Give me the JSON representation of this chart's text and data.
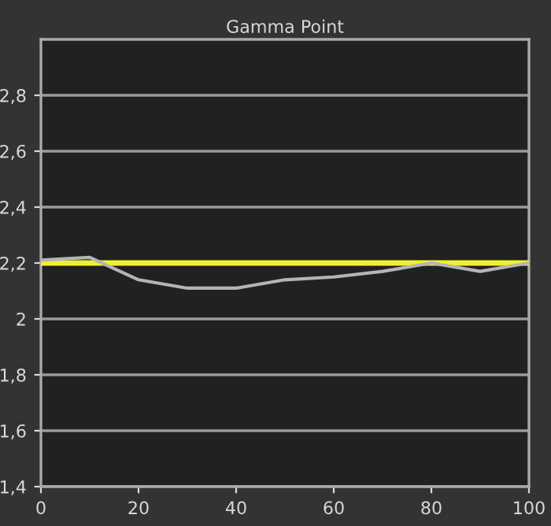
{
  "chart_data": {
    "type": "line",
    "title": "Gamma Point",
    "x": [
      0,
      10,
      20,
      30,
      40,
      50,
      60,
      70,
      80,
      90,
      100
    ],
    "series": [
      {
        "color": "#b4b4b4",
        "values": [
          2.21,
          2.22,
          2.14,
          2.11,
          2.11,
          2.14,
          2.15,
          2.17,
          2.2,
          2.17,
          2.2
        ]
      }
    ],
    "ref_lines": [
      {
        "axis": "y",
        "value": 2.2,
        "color": "#f0f032"
      }
    ],
    "xlim": [
      0,
      100
    ],
    "ylim": [
      1.4,
      3.0
    ],
    "xticks": [
      0,
      20,
      40,
      60,
      80,
      100
    ],
    "yticks": [
      {
        "value": 1.4,
        "label": "1,4"
      },
      {
        "value": 1.6,
        "label": "1,6"
      },
      {
        "value": 1.8,
        "label": "1,8"
      },
      {
        "value": 2,
        "label": "2"
      },
      {
        "value": 2.2,
        "label": "2,2"
      },
      {
        "value": 2.4,
        "label": "2,4"
      },
      {
        "value": 2.6,
        "label": "2,6"
      },
      {
        "value": 2.8,
        "label": "2,8"
      }
    ],
    "grid": "y",
    "marker": "none",
    "line_style": "solid"
  }
}
